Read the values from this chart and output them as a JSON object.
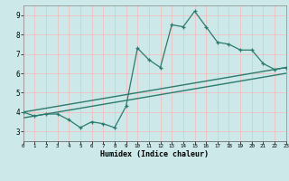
{
  "xlabel": "Humidex (Indice chaleur)",
  "x_data": [
    0,
    1,
    2,
    3,
    4,
    5,
    6,
    7,
    8,
    9,
    10,
    11,
    12,
    13,
    14,
    15,
    16,
    17,
    18,
    19,
    20,
    21,
    22,
    23
  ],
  "y_main": [
    4.0,
    3.8,
    3.9,
    3.9,
    3.6,
    3.2,
    3.5,
    3.4,
    3.2,
    4.3,
    7.3,
    6.7,
    6.3,
    8.5,
    8.4,
    9.2,
    8.4,
    7.6,
    7.5,
    7.2,
    7.2,
    6.5,
    6.2,
    6.3
  ],
  "trend1_start": 4.0,
  "trend1_end": 6.3,
  "trend2_start": 3.7,
  "trend2_end": 6.0,
  "ylim": [
    2.5,
    9.5
  ],
  "xlim": [
    0,
    23
  ],
  "yticks": [
    3,
    4,
    5,
    6,
    7,
    8,
    9
  ],
  "xticks": [
    0,
    1,
    2,
    3,
    4,
    5,
    6,
    7,
    8,
    9,
    10,
    11,
    12,
    13,
    14,
    15,
    16,
    17,
    18,
    19,
    20,
    21,
    22,
    23
  ],
  "line_color": "#2d7b6e",
  "bg_color": "#cce8e8",
  "grid_color": "#f0c0c0",
  "axis_bg": "#b0d8d8",
  "axis_color": "#000000",
  "trend_color": "#2d7b6e"
}
